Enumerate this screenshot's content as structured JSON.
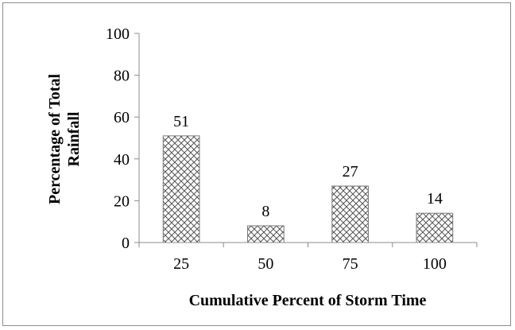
{
  "chart_data": {
    "type": "bar",
    "categories": [
      "25",
      "50",
      "75",
      "100"
    ],
    "values": [
      51,
      8,
      27,
      14
    ],
    "data_labels": [
      "51",
      "8",
      "27",
      "14"
    ],
    "title": "",
    "xlabel": "Cumulative Percent of Storm Time",
    "ylabel_lines": [
      "Percentage of Total",
      "Rainfall"
    ],
    "ylim": [
      0,
      100
    ],
    "yticks": [
      "0",
      "20",
      "40",
      "60",
      "80",
      "100"
    ],
    "bar_pattern": "crosshatch",
    "grid": false,
    "legend": "none"
  },
  "colors": {
    "bar_fill": "#ffffff",
    "bar_hatch": "#555555",
    "bar_border": "#777777",
    "axis": "#8c8c8c",
    "text": "#000000"
  }
}
